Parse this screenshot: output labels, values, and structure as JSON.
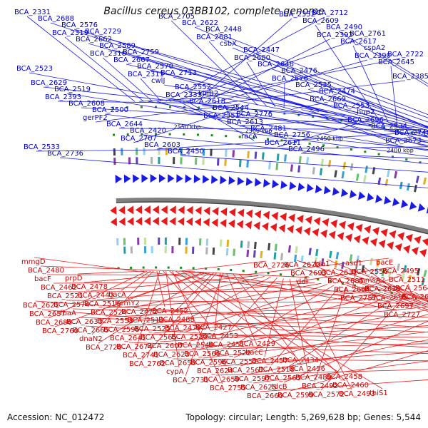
{
  "title": "Bacillus cereus 03BB102, complete genome",
  "footer": {
    "accession": "Accession: NC_012472",
    "summary": "Topology: circular; Length: 5,269,628 bp; Genes: 5,544"
  },
  "colors": {
    "forward": "#1a1ae6",
    "reverse": "#e61a1a",
    "backbone": "#7f7f7f",
    "tick": "#1b8a1b"
  },
  "kbp_ticks": [
    "2200 kbp",
    "2250 kbp",
    "2300 kbp",
    "2350 kbp",
    "2400 kbp",
    "2450 kbp",
    "2500 kbp",
    "2550 kbp"
  ],
  "top_labels": [
    "BCA_2331",
    "BCA_2319",
    "BCA_2318",
    "BCA_2311",
    "BCA_2333",
    "BCA_2351",
    "racA",
    "BCA_2352",
    "BCA_2392",
    "BCA_2390",
    "BCA_2385",
    "BCA_2393",
    "gerPF2",
    "BCA_2707",
    "BCA_2705",
    "BCA_2681",
    "BCA_2680",
    "BCA_2676",
    "BCA_2669",
    "BCA_2696",
    "BCA_2673",
    "BCA_2688",
    "BCA_2662",
    "BCA_2667",
    "cwlJ",
    "BCA_2618",
    "BCA_2613",
    "BCA_2611",
    "BCA_2609",
    "BCA_2617",
    "BCA_2645",
    "BCA_2629",
    "BCA_2608",
    "BCA_2644",
    "BCA_2603",
    "BCA_2622",
    "csbX",
    "BCA_2646",
    "BCA_2535",
    "BCA_2553",
    "BCA_2534",
    "BCA_2533",
    "BCA_2576",
    "BCA_2589",
    "BCA_2570",
    "BCA_2552",
    "BCA_2544",
    "BCA_2481",
    "BCA_2496",
    "BCA_2490",
    "cspA2",
    "BCA_2523",
    "BCA_2519",
    "BCA_2500",
    "BCA_2420",
    "BCA_2450",
    "BCA_2448",
    "BCA_2447",
    "BCA_2476",
    "BCA_2474",
    "hup2",
    "BCA_2748",
    "BCA_2736",
    "BCA_2729",
    "BCA_2759",
    "BCA_2713",
    "kinB2",
    "BCA_2776",
    "BCA_2756",
    "BCA_2712",
    "BCA_2761",
    "BCA_2722"
  ],
  "bottom_labels": [
    "mmgD",
    "prpD",
    "bacA",
    "BCA_2452",
    "BCA_2427",
    "BCA_2429",
    "BCA_2434",
    "BCA_2458",
    "thiS1",
    "BCA_2480",
    "BCA_2478",
    "hemY2",
    "BCA_2488",
    "BCA_2453",
    "bacC",
    "BCA_2456",
    "BCA_2460",
    "bacE",
    "bacF",
    "BCA_2443",
    "BCA_2472",
    "BCA_2479",
    "BCA_2451",
    "BCA_2457",
    "BCA_2489",
    "BCA_2493",
    "BCA_2495",
    "BCA_2462",
    "BCA_2516",
    "BCA_2513",
    "BCA_2520",
    "BCA_2522",
    "BCA_2518",
    "BCA_2492",
    "asd1",
    "BCA_2511",
    "BCA_2521",
    "BCA_2524",
    "BCA_2525",
    "BCA_2548",
    "BCA_2557",
    "BCA_2563",
    "BCA_2572",
    "BCA_2556",
    "BCA_2564",
    "BCA_2574",
    "BCA_2558",
    "BCA_2565",
    "BCA_2566",
    "BCA_2567",
    "tdcB",
    "bla1",
    "mmsA2",
    "BCA_2602",
    "fbaA",
    "BCA_2595",
    "BCA_2607",
    "BCA_2596",
    "BCA_2597",
    "BCA_2599",
    "BCA_2631",
    "BCA_2638",
    "BCA_2621",
    "BCA_2633",
    "BCA_2641",
    "BCA_2623",
    "BCA_2624",
    "BCA_2625",
    "BCA_2670",
    "BCA_2685",
    "BCA_2695",
    "BCA_2657",
    "BCA_2665",
    "BCA_2674",
    "BCA_2658",
    "BCA_2659",
    "BCA_2660",
    "BCA_2693",
    "BCA_2694",
    "BCA_2697",
    "BCA_2686",
    "dnaN2",
    "BCA_2741",
    "cypA",
    "BCA_2755",
    "BCA_2726",
    "ddl",
    "BCA_2757",
    "BCA_2727",
    "BCA_2760",
    "BCA_2728",
    "BCA_2762",
    "BCA_2731"
  ]
}
